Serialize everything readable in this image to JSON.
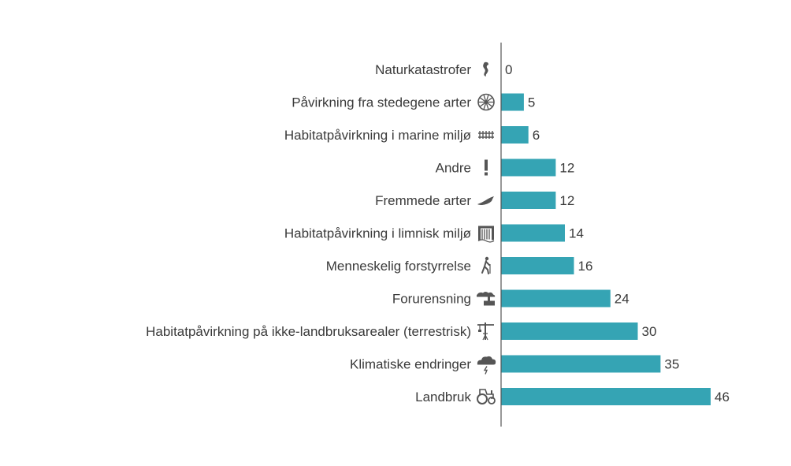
{
  "chart_data": {
    "type": "bar",
    "orientation": "horizontal",
    "categories": [
      "Naturkatastrofer",
      "Påvirkning fra stedegene arter",
      "Habitatpåvirkning i marine miljø",
      "Andre",
      "Fremmede arter",
      "Habitatpåvirkning i limnisk miljø",
      "Menneskelig forstyrrelse",
      "Forurensning",
      "Habitatpåvirkning på ikke-landbruksarealer (terrestrisk)",
      "Klimatiske endringer",
      "Landbruk"
    ],
    "values": [
      0,
      5,
      6,
      12,
      12,
      14,
      16,
      24,
      30,
      35,
      46
    ],
    "value_labels": [
      "0",
      "5",
      "6",
      "12",
      "12",
      "14",
      "16",
      "24",
      "30",
      "35",
      "46"
    ],
    "icons": [
      "seahorse-icon",
      "wheel-icon",
      "fence-icon",
      "exclamation-icon",
      "fish-icon",
      "dam-icon",
      "hiker-icon",
      "factory-smoke-icon",
      "crane-icon",
      "storm-cloud-icon",
      "tractor-icon"
    ],
    "bar_color": "#35a4b4",
    "icon_color": "#555555",
    "axis_color": "#555555",
    "xlim": [
      0,
      50
    ],
    "grid": false,
    "legend": "none"
  }
}
